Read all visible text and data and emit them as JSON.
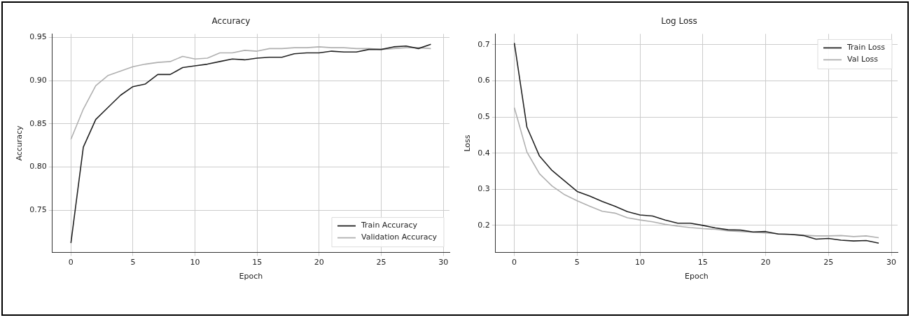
{
  "chart_data": [
    {
      "type": "line",
      "title": "Accuracy",
      "xlabel": "Epoch",
      "ylabel": "Accuracy",
      "x": [
        0,
        1,
        2,
        3,
        4,
        5,
        6,
        7,
        8,
        9,
        10,
        11,
        12,
        13,
        14,
        15,
        16,
        17,
        18,
        19,
        20,
        21,
        22,
        23,
        24,
        25,
        26,
        27,
        28,
        29
      ],
      "series": [
        {
          "name": "Train Accuracy",
          "color": "#222222",
          "values": [
            0.712,
            0.823,
            0.855,
            0.869,
            0.883,
            0.893,
            0.896,
            0.907,
            0.907,
            0.915,
            0.917,
            0.919,
            0.922,
            0.925,
            0.924,
            0.926,
            0.927,
            0.927,
            0.931,
            0.932,
            0.932,
            0.934,
            0.933,
            0.933,
            0.936,
            0.936,
            0.939,
            0.94,
            0.937,
            0.942
          ]
        },
        {
          "name": "Validation Accuracy",
          "color": "#b0b0b0",
          "values": [
            0.832,
            0.867,
            0.894,
            0.906,
            0.911,
            0.916,
            0.919,
            0.921,
            0.922,
            0.928,
            0.925,
            0.926,
            0.932,
            0.932,
            0.935,
            0.934,
            0.937,
            0.937,
            0.938,
            0.938,
            0.939,
            0.938,
            0.938,
            0.937,
            0.937,
            0.936,
            0.937,
            0.938,
            0.938,
            0.937
          ]
        }
      ],
      "xlim": [
        -1.5,
        30.5
      ],
      "xticks": [
        0,
        5,
        10,
        15,
        20,
        25,
        30
      ],
      "ylim": [
        0.701,
        0.954
      ],
      "yticks": [
        {
          "value": 0.75,
          "label": "0.75"
        },
        {
          "value": 0.8,
          "label": "0.80"
        },
        {
          "value": 0.85,
          "label": "0.85"
        },
        {
          "value": 0.9,
          "label": "0.90"
        },
        {
          "value": 0.95,
          "label": "0.95"
        }
      ],
      "grid": true,
      "legend": "bottom right"
    },
    {
      "type": "line",
      "title": "Log Loss",
      "xlabel": "Epoch",
      "ylabel": "Loss",
      "x": [
        0,
        1,
        2,
        3,
        4,
        5,
        6,
        7,
        8,
        9,
        10,
        11,
        12,
        13,
        14,
        15,
        16,
        17,
        18,
        19,
        20,
        21,
        22,
        23,
        24,
        25,
        26,
        27,
        28,
        29
      ],
      "series": [
        {
          "name": "Train Loss",
          "color": "#222222",
          "values": [
            0.705,
            0.472,
            0.392,
            0.352,
            0.323,
            0.294,
            0.281,
            0.266,
            0.253,
            0.238,
            0.229,
            0.226,
            0.215,
            0.206,
            0.206,
            0.2,
            0.193,
            0.188,
            0.187,
            0.182,
            0.183,
            0.176,
            0.175,
            0.172,
            0.162,
            0.164,
            0.159,
            0.157,
            0.158,
            0.151
          ]
        },
        {
          "name": "Val Loss",
          "color": "#b0b0b0",
          "values": [
            0.526,
            0.403,
            0.343,
            0.309,
            0.285,
            0.268,
            0.253,
            0.239,
            0.234,
            0.221,
            0.215,
            0.21,
            0.203,
            0.198,
            0.194,
            0.191,
            0.189,
            0.185,
            0.183,
            0.181,
            0.179,
            0.177,
            0.175,
            0.173,
            0.171,
            0.171,
            0.172,
            0.169,
            0.171,
            0.166
          ]
        }
      ],
      "xlim": [
        -1.5,
        30.5
      ],
      "xticks": [
        0,
        5,
        10,
        15,
        20,
        25,
        30
      ],
      "ylim": [
        0.125,
        0.73
      ],
      "yticks": [
        0.2,
        0.3,
        0.4,
        0.5,
        0.6,
        0.7
      ],
      "grid": true,
      "legend": "top right"
    }
  ]
}
